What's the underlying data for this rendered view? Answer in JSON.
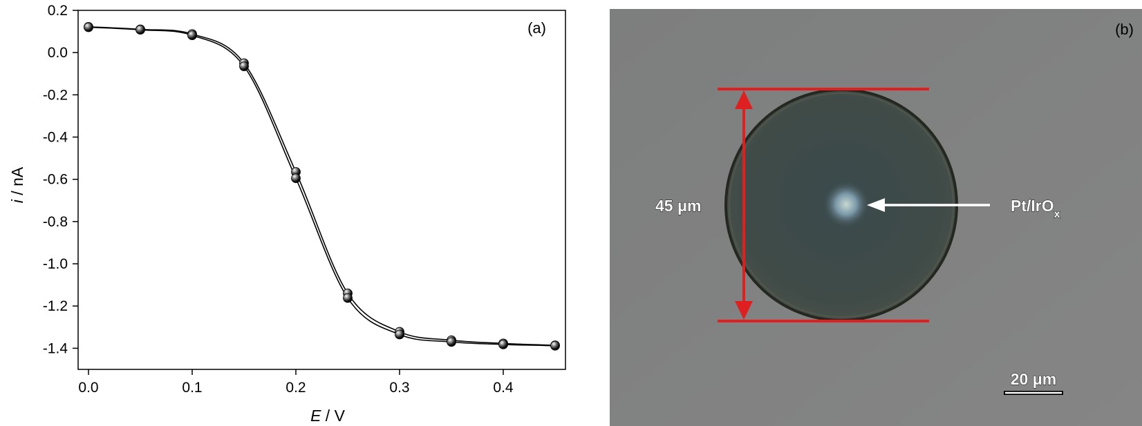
{
  "chart_data": {
    "type": "scatter",
    "panel_label": "(a)",
    "xlabel": {
      "symbol": "E",
      "unit": " / V"
    },
    "ylabel": {
      "symbol": "i",
      "unit": " / nA"
    },
    "xlim": [
      -0.01,
      0.46
    ],
    "ylim": [
      -1.5,
      0.2
    ],
    "xticks": [
      0.0,
      0.1,
      0.2,
      0.3,
      0.4
    ],
    "xtick_labels": [
      "0.0",
      "0.1",
      "0.2",
      "0.3",
      "0.4"
    ],
    "yticks": [
      0.2,
      0.0,
      -0.2,
      -0.4,
      -0.6,
      -0.8,
      -1.0,
      -1.2,
      -1.4
    ],
    "ytick_labels": [
      "0.2",
      "0.0",
      "-0.2",
      "-0.4",
      "-0.6",
      "-0.8",
      "-1.0",
      "-1.2",
      "-1.4"
    ],
    "grid": false,
    "series": [
      {
        "x": [
          0.0,
          0.05,
          0.1,
          0.15,
          0.2,
          0.25,
          0.3,
          0.35,
          0.4,
          0.45
        ],
        "y": [
          0.122,
          0.11,
          0.088,
          -0.05,
          -0.565,
          -1.14,
          -1.322,
          -1.362,
          -1.377,
          -1.386
        ]
      },
      {
        "x": [
          0.0,
          0.05,
          0.1,
          0.15,
          0.2,
          0.25,
          0.3,
          0.35,
          0.4,
          0.45
        ],
        "y": [
          0.12,
          0.108,
          0.082,
          -0.065,
          -0.595,
          -1.162,
          -1.335,
          -1.37,
          -1.382,
          -1.388
        ]
      }
    ]
  },
  "image_panel": {
    "panel_label": "(b)",
    "diameter_label": "45 μm",
    "material_label": "Pt/IrO",
    "material_subscript": "x",
    "scalebar_label": "20 μm",
    "annotation_color": "#e02020",
    "arrow_color": "#ffffff"
  }
}
